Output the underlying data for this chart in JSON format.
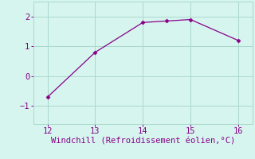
{
  "x": [
    12,
    13,
    14,
    14.5,
    15,
    16
  ],
  "y": [
    -0.7,
    0.8,
    1.8,
    1.85,
    1.9,
    1.2
  ],
  "line_color": "#880088",
  "marker": "D",
  "marker_size": 2.5,
  "bg_color": "#d6f5ef",
  "grid_color": "#aad8cc",
  "xlabel": "Windchill (Refroidissement éolien,°C)",
  "xlim": [
    11.7,
    16.3
  ],
  "ylim": [
    -1.6,
    2.5
  ],
  "xticks": [
    12,
    13,
    14,
    15,
    16
  ],
  "yticks": [
    -1,
    0,
    1,
    2
  ],
  "label_fontsize": 7.5,
  "tick_fontsize": 7.5
}
